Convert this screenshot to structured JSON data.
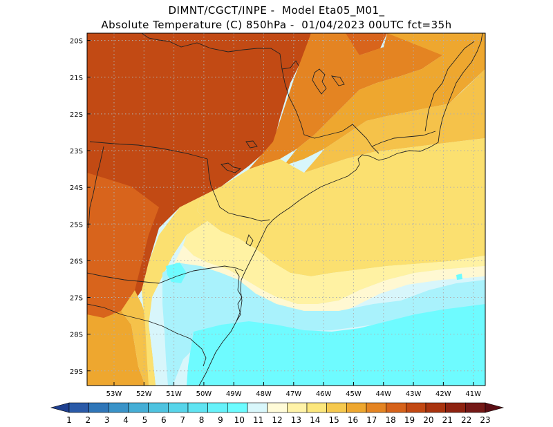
{
  "title_line1": "DIMNT/CGCT/INPE -  Model Eta05_M01_",
  "title_line2": "Absolute Temperature (C) 850hPa -  01/04/2023 00UTC fct=35h",
  "map": {
    "lat_labels": [
      "20S",
      "21S",
      "22S",
      "23S",
      "24S",
      "25S",
      "26S",
      "27S",
      "28S",
      "29S"
    ],
    "lon_labels": [
      "53W",
      "52W",
      "51W",
      "50W",
      "49W",
      "48W",
      "47W",
      "46W",
      "45W",
      "44W",
      "43W",
      "42W",
      "41W"
    ],
    "lat_range": [
      -29.4,
      -19.8
    ],
    "lon_range": [
      -53.9,
      -40.6
    ],
    "field": "Absolute Temperature (C) 850hPa"
  },
  "colorbar": {
    "labels": [
      "1",
      "2",
      "3",
      "4",
      "5",
      "6",
      "7",
      "8",
      "9",
      "10",
      "11",
      "12",
      "13",
      "14",
      "15",
      "16",
      "17",
      "18",
      "19",
      "20",
      "21",
      "22",
      "23"
    ],
    "colors": [
      "#1e3f8f",
      "#2a5aa8",
      "#2f76b8",
      "#3a93c8",
      "#45aed6",
      "#4ec3e0",
      "#57d5ea",
      "#5fe4f2",
      "#66f2fa",
      "#6cfcff",
      "#d9f7fb",
      "#fffbd8",
      "#fff3a8",
      "#fce77c",
      "#f6c94e",
      "#eea72f",
      "#e48422",
      "#d6621a",
      "#c24812",
      "#a9330e",
      "#8e2210",
      "#741816",
      "#5a0d14"
    ]
  },
  "palette": {
    "c20": "#c24a14",
    "c19": "#d8641c",
    "c18": "#e48422",
    "c17": "#eea72f",
    "c16": "#f5c24a",
    "c15": "#fbe070",
    "c14": "#fff2a3",
    "c13": "#fff8d2",
    "c12": "#d8f6fb",
    "c11": "#a9f2fc",
    "c10": "#6efbff",
    "grid": "#b0b0b0",
    "coast": "#222222"
  }
}
